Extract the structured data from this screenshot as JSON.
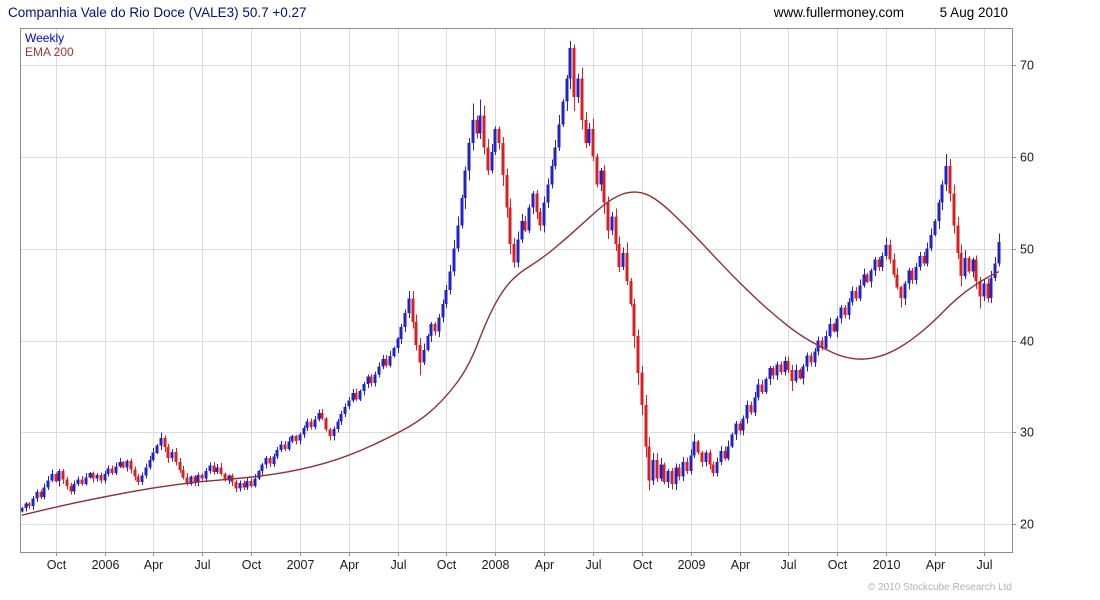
{
  "header": {
    "title": "Companhia Vale do Rio Doce (VALE3) 50.7 +0.27",
    "website": "www.fullermoney.com",
    "date": "5 Aug 2010"
  },
  "legend": {
    "series1": "Weekly",
    "series2": "EMA 200"
  },
  "footer": {
    "copyright": "© 2010 Stockcube Research Ltd"
  },
  "colors": {
    "up": "#2222cc",
    "down": "#d91f1f",
    "ema": "#8b3232",
    "grid": "#dcdcdc",
    "border": "#8c8c8c",
    "axis_text": "#1a1a1a"
  },
  "chart_data": {
    "type": "candlestick",
    "title": "Companhia Vale do Rio Doce (VALE3) 50.7 +0.27",
    "frequency": "Weekly",
    "overlay": "EMA 200",
    "last_price": 50.7,
    "change": 0.27,
    "x_start": "Aug 2005",
    "x_end": "Aug 2010",
    "y_ticks": [
      20,
      30,
      40,
      50,
      60,
      70
    ],
    "y_range": [
      17,
      74
    ],
    "x_axis_labels": [
      {
        "label": "Oct",
        "week": 9
      },
      {
        "label": "2006",
        "week": 22
      },
      {
        "label": "Apr",
        "week": 35
      },
      {
        "label": "Jul",
        "week": 48
      },
      {
        "label": "Oct",
        "week": 61
      },
      {
        "label": "2007",
        "week": 74
      },
      {
        "label": "Apr",
        "week": 87
      },
      {
        "label": "Jul",
        "week": 100
      },
      {
        "label": "Oct",
        "week": 113
      },
      {
        "label": "2008",
        "week": 126
      },
      {
        "label": "Apr",
        "week": 139
      },
      {
        "label": "Jul",
        "week": 152
      },
      {
        "label": "Oct",
        "week": 165
      },
      {
        "label": "2009",
        "week": 178
      },
      {
        "label": "Apr",
        "week": 191
      },
      {
        "label": "Jul",
        "week": 204
      },
      {
        "label": "Oct",
        "week": 217
      },
      {
        "label": "2010",
        "week": 230
      },
      {
        "label": "Apr",
        "week": 243
      },
      {
        "label": "Jul",
        "week": 256
      }
    ],
    "weekly_closes": [
      21.8,
      22.3,
      22.0,
      22.8,
      23.5,
      23.0,
      24.0,
      24.8,
      25.5,
      24.7,
      25.8,
      24.9,
      24.2,
      23.6,
      24.4,
      24.9,
      24.4,
      25.1,
      25.6,
      25.0,
      25.4,
      24.8,
      25.5,
      26.1,
      25.6,
      26.3,
      26.8,
      26.2,
      26.9,
      26.0,
      25.2,
      24.6,
      25.3,
      26.2,
      27.0,
      27.8,
      28.6,
      29.4,
      28.4,
      27.2,
      27.9,
      26.8,
      25.9,
      25.1,
      24.4,
      25.2,
      24.6,
      25.4,
      25.0,
      25.8,
      26.4,
      25.7,
      26.2,
      25.5,
      24.8,
      25.3,
      24.6,
      23.9,
      24.5,
      24.0,
      24.7,
      24.2,
      25.0,
      25.8,
      26.5,
      27.2,
      26.6,
      27.4,
      28.1,
      28.7,
      28.2,
      29.0,
      29.6,
      29.1,
      29.8,
      30.5,
      31.2,
      30.6,
      31.4,
      32.1,
      31.5,
      30.3,
      29.6,
      30.4,
      31.2,
      32.0,
      32.8,
      33.5,
      34.3,
      33.6,
      34.5,
      35.3,
      36.1,
      35.4,
      36.3,
      37.2,
      38.0,
      37.3,
      38.3,
      39.2,
      40.2,
      41.5,
      43.0,
      44.6,
      42.0,
      39.5,
      37.6,
      39.0,
      40.5,
      41.8,
      41.0,
      42.5,
      44.0,
      45.5,
      47.5,
      50.0,
      52.5,
      55.5,
      58.5,
      61.5,
      64.0,
      62.5,
      64.5,
      61.0,
      58.5,
      60.5,
      63.0,
      61.5,
      58.0,
      54.5,
      50.5,
      48.5,
      51.0,
      53.0,
      52.0,
      54.5,
      56.0,
      54.0,
      52.5,
      55.0,
      57.0,
      59.0,
      61.0,
      63.5,
      66.0,
      68.5,
      71.8,
      66.5,
      68.5,
      64.0,
      61.5,
      63.0,
      60.0,
      57.0,
      58.5,
      55.0,
      52.0,
      53.5,
      50.5,
      48.0,
      49.5,
      46.5,
      44.0,
      40.5,
      36.5,
      33.0,
      28.5,
      24.8,
      27.0,
      25.0,
      26.5,
      24.6,
      25.8,
      24.4,
      26.2,
      25.2,
      26.8,
      25.8,
      27.5,
      29.0,
      27.8,
      26.8,
      27.8,
      26.5,
      25.6,
      26.8,
      28.0,
      27.2,
      28.5,
      29.8,
      31.0,
      30.2,
      31.5,
      33.0,
      32.2,
      33.8,
      35.2,
      34.4,
      35.8,
      37.0,
      36.2,
      37.4,
      36.6,
      37.8,
      36.8,
      35.6,
      36.8,
      35.9,
      37.2,
      38.4,
      37.6,
      38.8,
      40.0,
      39.2,
      40.5,
      41.8,
      41.0,
      42.4,
      43.6,
      42.8,
      44.2,
      45.4,
      44.6,
      46.0,
      47.2,
      46.4,
      47.6,
      48.8,
      48.0,
      49.2,
      50.4,
      48.8,
      47.2,
      45.8,
      44.6,
      46.2,
      47.6,
      46.6,
      48.0,
      49.2,
      48.4,
      50.0,
      51.5,
      53.0,
      55.0,
      57.0,
      59.0,
      56.0,
      52.5,
      49.5,
      47.0,
      49.0,
      47.5,
      48.8,
      46.5,
      44.8,
      46.2,
      44.6,
      46.8,
      48.4,
      50.7
    ],
    "extremes": {
      "37": {
        "high": 30.0
      },
      "103": {
        "high": 45.4
      },
      "106": {
        "low": 36.2
      },
      "120": {
        "high": 65.8
      },
      "122": {
        "high": 66.2
      },
      "146": {
        "high": 72.6
      },
      "147": {
        "high": 72.2
      },
      "167": {
        "low": 23.7
      },
      "173": {
        "low": 23.8
      },
      "179": {
        "high": 29.9
      },
      "205": {
        "low": 34.5
      },
      "230": {
        "high": 51.2
      },
      "234": {
        "low": 43.6
      },
      "246": {
        "high": 60.3
      },
      "250": {
        "low": 45.9
      },
      "255": {
        "low": 43.5
      }
    },
    "ema200_points": [
      [
        0,
        21.0
      ],
      [
        10,
        22.0
      ],
      [
        22,
        23.0
      ],
      [
        35,
        24.0
      ],
      [
        48,
        24.7
      ],
      [
        61,
        25.1
      ],
      [
        74,
        25.9
      ],
      [
        87,
        27.4
      ],
      [
        100,
        29.9
      ],
      [
        107,
        31.6
      ],
      [
        113,
        33.9
      ],
      [
        119,
        37.2
      ],
      [
        124,
        42.5
      ],
      [
        128,
        45.5
      ],
      [
        132,
        47.3
      ],
      [
        138,
        48.8
      ],
      [
        144,
        50.8
      ],
      [
        150,
        53.0
      ],
      [
        156,
        55.2
      ],
      [
        161,
        56.2
      ],
      [
        166,
        56.1
      ],
      [
        171,
        54.7
      ],
      [
        177,
        52.3
      ],
      [
        183,
        49.7
      ],
      [
        189,
        47.1
      ],
      [
        195,
        44.7
      ],
      [
        201,
        42.5
      ],
      [
        207,
        40.6
      ],
      [
        213,
        39.2
      ],
      [
        219,
        38.1
      ],
      [
        225,
        37.9
      ],
      [
        231,
        38.6
      ],
      [
        237,
        40.1
      ],
      [
        243,
        42.2
      ],
      [
        247,
        43.9
      ],
      [
        251,
        45.3
      ],
      [
        255,
        46.4
      ],
      [
        258,
        47.1
      ],
      [
        260,
        47.5
      ]
    ]
  }
}
